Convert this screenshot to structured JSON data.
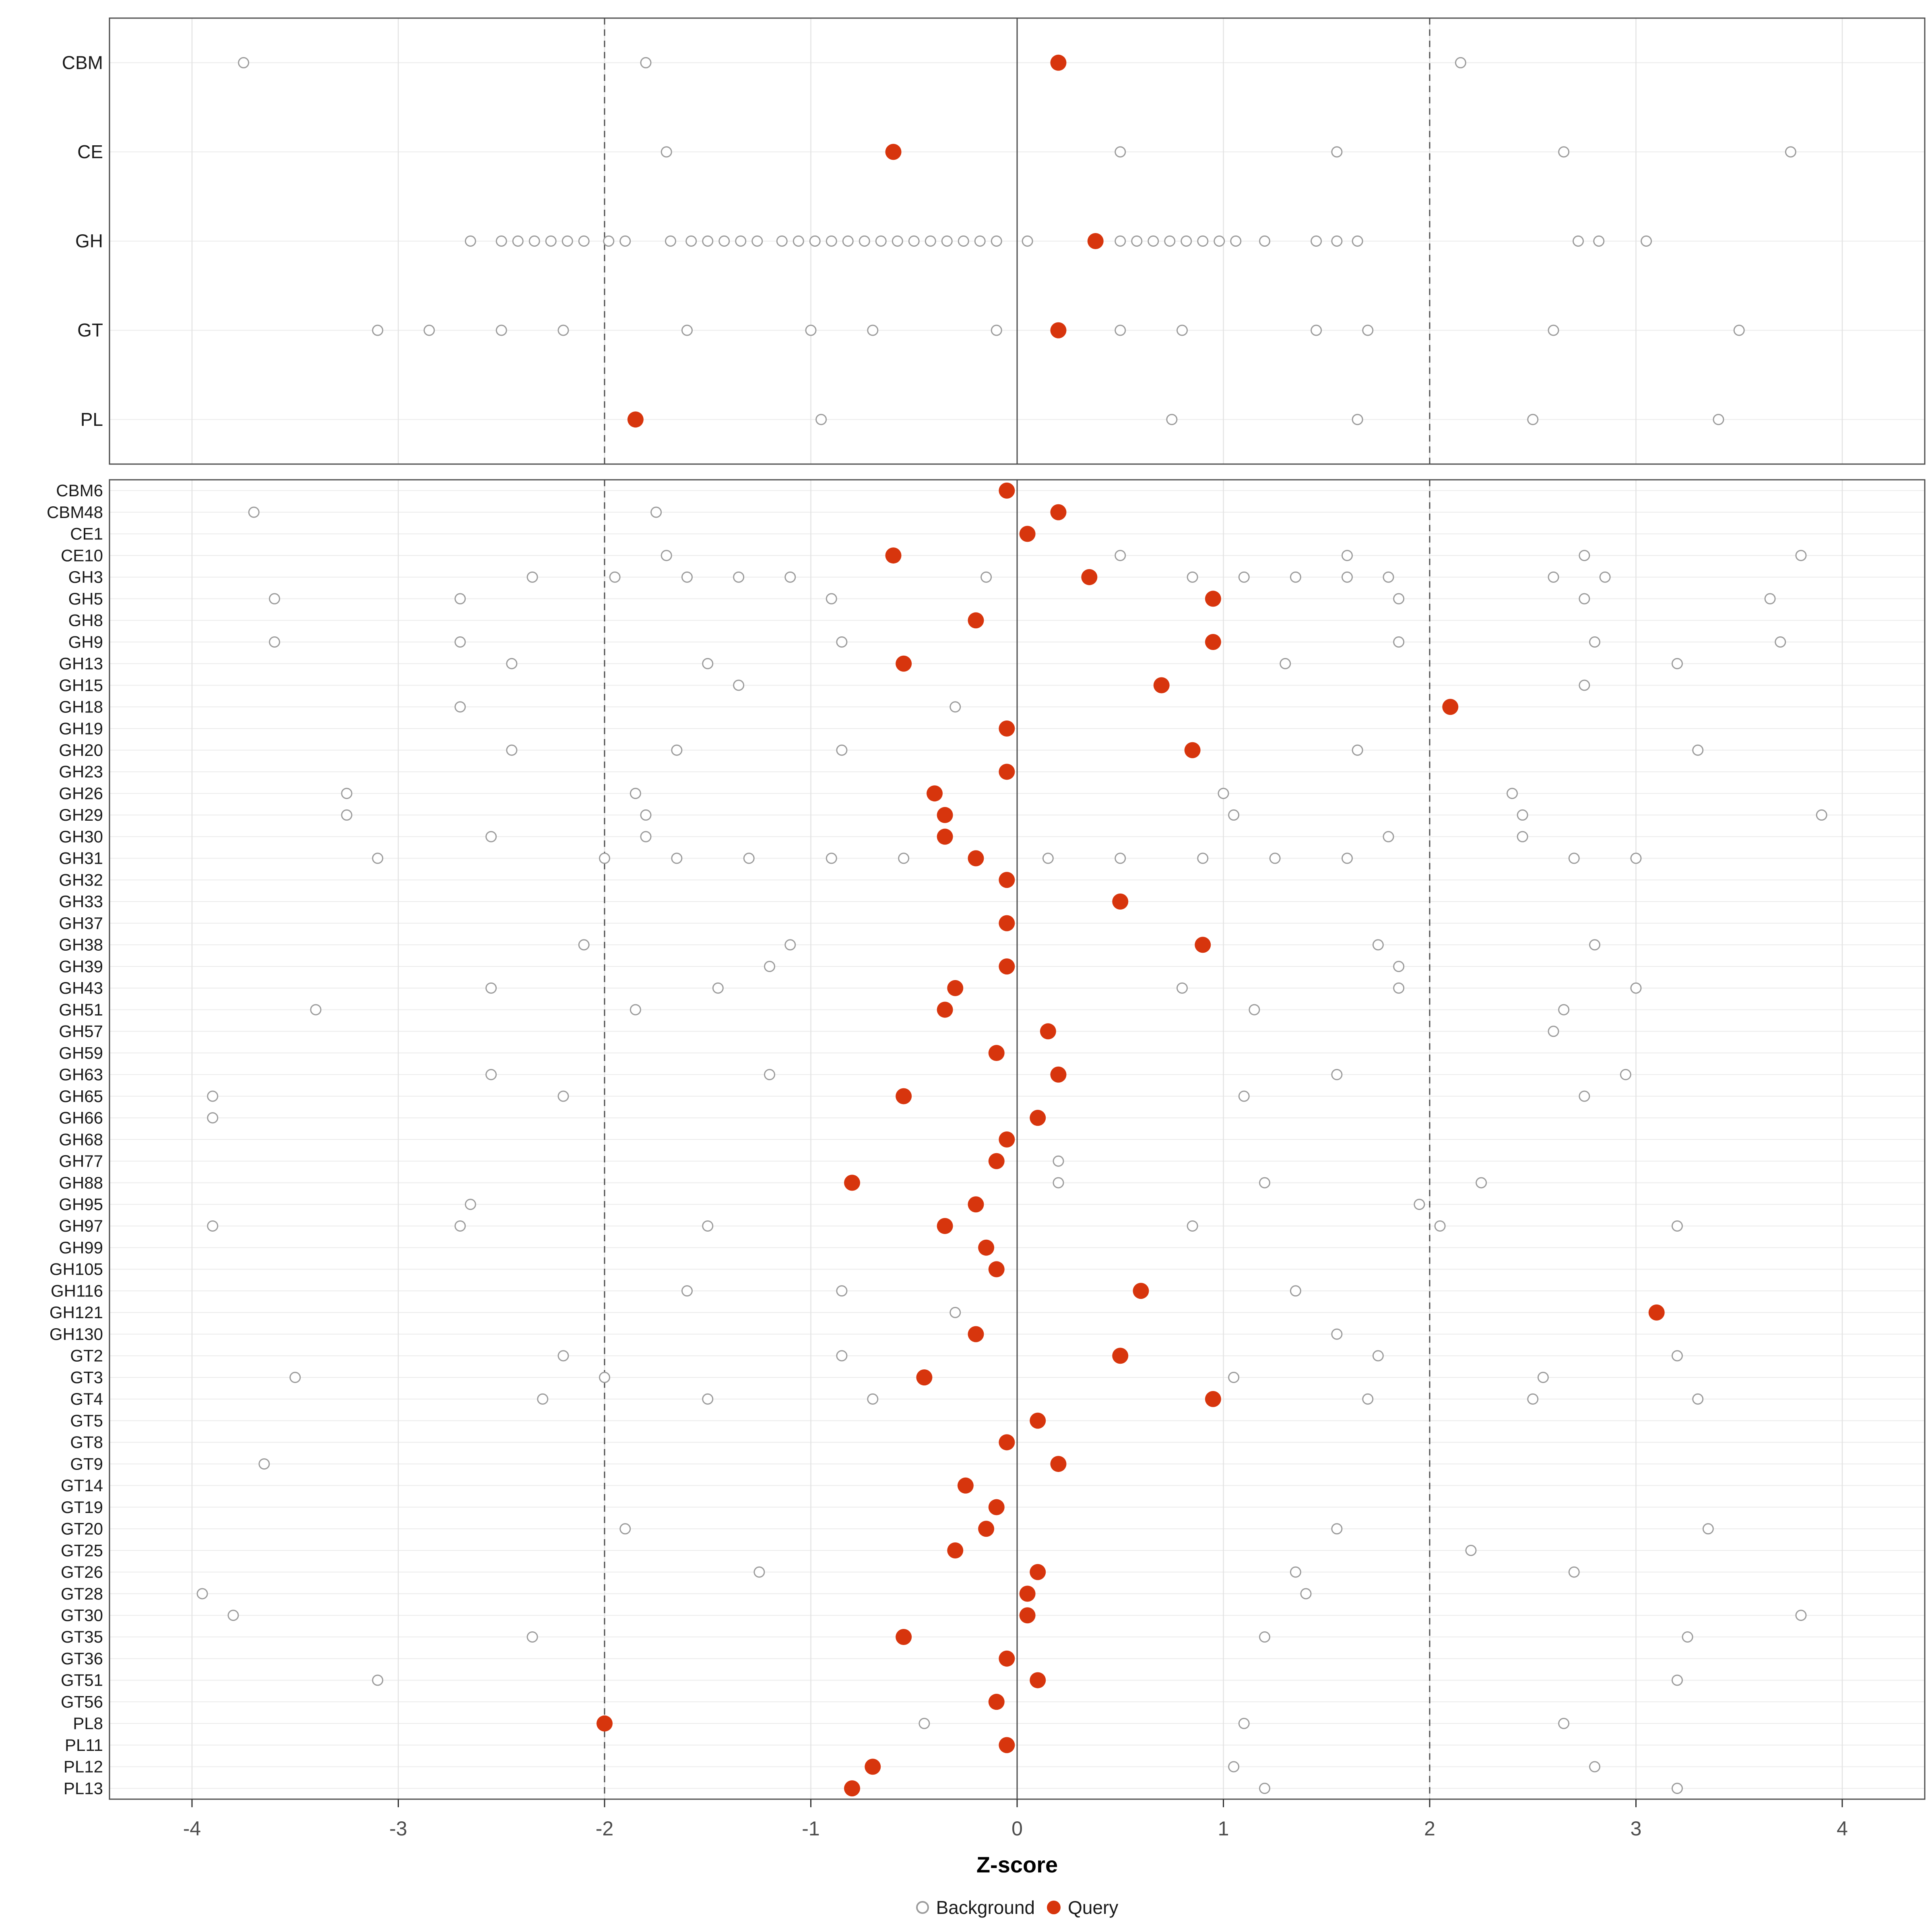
{
  "figure": {
    "xlabel": "Z-score",
    "legend_background": "Background",
    "legend_query": "Query"
  },
  "style": {
    "query_color": "#D7350D",
    "background_stroke": "#9B9B9B",
    "grid_color": "#E3E3E3",
    "row_grid_color": "#EBEBEB",
    "border_color": "#4D4D4D",
    "ref_line_color": "#4D4D4D",
    "label_color": "#1A1A1A",
    "tick_text_color": "#4D4D4D"
  },
  "chart_data": {
    "type": "scatter",
    "xlabel": "Z-score",
    "xlim": [
      -4.4,
      4.4
    ],
    "x_ticks": [
      -4,
      -3,
      -2,
      -1,
      0,
      1,
      2,
      3,
      4
    ],
    "reference_lines": {
      "solid": [
        0
      ],
      "dashed": [
        -2,
        2
      ]
    },
    "legend": [
      "Background",
      "Query"
    ],
    "panels": [
      {
        "name": "summary",
        "rows": [
          {
            "label": "CBM",
            "query": [
              0.2
            ],
            "background": [
              -3.75,
              -1.8,
              2.15
            ]
          },
          {
            "label": "CE",
            "query": [
              -0.6
            ],
            "background": [
              -1.7,
              0.5,
              1.55,
              2.65,
              3.75
            ]
          },
          {
            "label": "GH",
            "query": [
              0.38
            ],
            "background": [
              -2.65,
              -2.5,
              -2.42,
              -2.34,
              -2.26,
              -2.18,
              -2.1,
              -1.98,
              -1.9,
              -1.68,
              -1.58,
              -1.5,
              -1.42,
              -1.34,
              -1.26,
              -1.14,
              -1.06,
              -0.98,
              -0.9,
              -0.82,
              -0.74,
              -0.66,
              -0.58,
              -0.5,
              -0.42,
              -0.34,
              -0.26,
              -0.18,
              -0.1,
              0.05,
              0.5,
              0.58,
              0.66,
              0.74,
              0.82,
              0.9,
              0.98,
              1.06,
              1.2,
              1.45,
              1.55,
              1.65,
              2.72,
              2.82,
              3.05
            ]
          },
          {
            "label": "GT",
            "query": [
              0.2
            ],
            "background": [
              -3.1,
              -2.85,
              -2.5,
              -2.2,
              -1.6,
              -1.0,
              -0.7,
              -0.1,
              0.5,
              0.8,
              1.45,
              1.7,
              2.6,
              3.5
            ]
          },
          {
            "label": "PL",
            "query": [
              -1.85
            ],
            "background": [
              -0.95,
              0.75,
              1.65,
              2.5,
              3.4
            ]
          }
        ]
      },
      {
        "name": "families",
        "rows": [
          {
            "label": "CBM6",
            "query": [
              -0.05
            ],
            "background": []
          },
          {
            "label": "CBM48",
            "query": [
              0.2
            ],
            "background": [
              -3.7,
              -1.75
            ]
          },
          {
            "label": "CE1",
            "query": [
              0.05
            ],
            "background": []
          },
          {
            "label": "CE10",
            "query": [
              -0.6
            ],
            "background": [
              -1.7,
              0.5,
              1.6,
              2.75,
              3.8
            ]
          },
          {
            "label": "GH3",
            "query": [
              0.35
            ],
            "background": [
              -2.35,
              -1.95,
              -1.6,
              -1.35,
              -1.1,
              -0.15,
              0.85,
              1.1,
              1.35,
              1.6,
              1.8,
              2.6,
              2.85
            ]
          },
          {
            "label": "GH5",
            "query": [
              0.95
            ],
            "background": [
              -3.6,
              -2.7,
              -0.9,
              1.85,
              2.75,
              3.65
            ]
          },
          {
            "label": "GH8",
            "query": [
              -0.2
            ],
            "background": []
          },
          {
            "label": "GH9",
            "query": [
              0.95
            ],
            "background": [
              -3.6,
              -2.7,
              -0.85,
              1.85,
              2.8,
              3.7
            ]
          },
          {
            "label": "GH13",
            "query": [
              -0.55
            ],
            "background": [
              -2.45,
              -1.5,
              1.3,
              3.2
            ]
          },
          {
            "label": "GH15",
            "query": [
              0.7
            ],
            "background": [
              -1.35,
              2.75
            ]
          },
          {
            "label": "GH18",
            "query": [
              2.1
            ],
            "background": [
              -2.7,
              -0.3
            ]
          },
          {
            "label": "GH19",
            "query": [
              -0.05
            ],
            "background": []
          },
          {
            "label": "GH20",
            "query": [
              0.85
            ],
            "background": [
              -2.45,
              -1.65,
              -0.85,
              1.65,
              3.3
            ]
          },
          {
            "label": "GH23",
            "query": [
              -0.05
            ],
            "background": []
          },
          {
            "label": "GH26",
            "query": [
              -0.4
            ],
            "background": [
              -3.25,
              -1.85,
              1.0,
              2.4
            ]
          },
          {
            "label": "GH29",
            "query": [
              -0.35
            ],
            "background": [
              -3.25,
              -1.8,
              1.05,
              2.45,
              3.9
            ]
          },
          {
            "label": "GH30",
            "query": [
              -0.35
            ],
            "background": [
              -2.55,
              -1.8,
              1.8,
              2.45
            ]
          },
          {
            "label": "GH31",
            "query": [
              -0.2
            ],
            "background": [
              -3.1,
              -2.0,
              -1.65,
              -1.3,
              -0.9,
              -0.55,
              0.15,
              0.5,
              0.9,
              1.25,
              1.6,
              2.7,
              3.0
            ]
          },
          {
            "label": "GH32",
            "query": [
              -0.05
            ],
            "background": []
          },
          {
            "label": "GH33",
            "query": [
              0.5
            ],
            "background": []
          },
          {
            "label": "GH37",
            "query": [
              -0.05
            ],
            "background": []
          },
          {
            "label": "GH38",
            "query": [
              0.9
            ],
            "background": [
              -2.1,
              -1.1,
              1.75,
              2.8
            ]
          },
          {
            "label": "GH39",
            "query": [
              -0.05
            ],
            "background": [
              -1.2,
              1.85
            ]
          },
          {
            "label": "GH43",
            "query": [
              -0.3
            ],
            "background": [
              -2.55,
              -1.45,
              0.8,
              1.85,
              3.0
            ]
          },
          {
            "label": "GH51",
            "query": [
              -0.35
            ],
            "background": [
              -3.4,
              -1.85,
              1.15,
              2.65
            ]
          },
          {
            "label": "GH57",
            "query": [
              0.15
            ],
            "background": [
              2.6
            ]
          },
          {
            "label": "GH59",
            "query": [
              -0.1
            ],
            "background": []
          },
          {
            "label": "GH63",
            "query": [
              0.2
            ],
            "background": [
              -2.55,
              -1.2,
              1.55,
              2.95
            ]
          },
          {
            "label": "GH65",
            "query": [
              -0.55
            ],
            "background": [
              -3.9,
              -2.2,
              1.1,
              2.75
            ]
          },
          {
            "label": "GH66",
            "query": [
              0.1
            ],
            "background": [
              -3.9
            ]
          },
          {
            "label": "GH68",
            "query": [
              -0.05
            ],
            "background": []
          },
          {
            "label": "GH77",
            "query": [
              -0.1
            ],
            "background": [
              0.2
            ]
          },
          {
            "label": "GH88",
            "query": [
              -0.8
            ],
            "background": [
              0.2,
              1.2,
              2.25
            ]
          },
          {
            "label": "GH95",
            "query": [
              -0.2
            ],
            "background": [
              -2.65,
              1.95
            ]
          },
          {
            "label": "GH97",
            "query": [
              -0.35
            ],
            "background": [
              -3.9,
              -2.7,
              -1.5,
              0.85,
              2.05,
              3.2
            ]
          },
          {
            "label": "GH99",
            "query": [
              -0.15
            ],
            "background": []
          },
          {
            "label": "GH105",
            "query": [
              -0.1
            ],
            "background": []
          },
          {
            "label": "GH116",
            "query": [
              0.6
            ],
            "background": [
              -1.6,
              -0.85,
              1.35
            ]
          },
          {
            "label": "GH121",
            "query": [
              3.1
            ],
            "background": [
              -0.3
            ]
          },
          {
            "label": "GH130",
            "query": [
              -0.2
            ],
            "background": [
              1.55
            ]
          },
          {
            "label": "GT2",
            "query": [
              0.5
            ],
            "background": [
              -2.2,
              -0.85,
              1.75,
              3.2
            ]
          },
          {
            "label": "GT3",
            "query": [
              -0.45
            ],
            "background": [
              -3.5,
              -2.0,
              1.05,
              2.55
            ]
          },
          {
            "label": "GT4",
            "query": [
              0.95
            ],
            "background": [
              -2.3,
              -1.5,
              -0.7,
              1.7,
              2.5,
              3.3
            ]
          },
          {
            "label": "GT5",
            "query": [
              0.1
            ],
            "background": []
          },
          {
            "label": "GT8",
            "query": [
              -0.05
            ],
            "background": []
          },
          {
            "label": "GT9",
            "query": [
              0.2
            ],
            "background": [
              -3.65
            ]
          },
          {
            "label": "GT14",
            "query": [
              -0.25
            ],
            "background": []
          },
          {
            "label": "GT19",
            "query": [
              -0.1
            ],
            "background": []
          },
          {
            "label": "GT20",
            "query": [
              -0.15
            ],
            "background": [
              -1.9,
              1.55,
              3.35
            ]
          },
          {
            "label": "GT25",
            "query": [
              -0.3
            ],
            "background": [
              2.2
            ]
          },
          {
            "label": "GT26",
            "query": [
              0.1
            ],
            "background": [
              -1.25,
              1.35,
              2.7
            ]
          },
          {
            "label": "GT28",
            "query": [
              0.05
            ],
            "background": [
              -3.95,
              1.4
            ]
          },
          {
            "label": "GT30",
            "query": [
              0.05
            ],
            "background": [
              -3.8,
              3.8
            ]
          },
          {
            "label": "GT35",
            "query": [
              -0.55
            ],
            "background": [
              -2.35,
              1.2,
              3.25
            ]
          },
          {
            "label": "GT36",
            "query": [
              -0.05
            ],
            "background": []
          },
          {
            "label": "GT51",
            "query": [
              0.1
            ],
            "background": [
              -3.1,
              3.2
            ]
          },
          {
            "label": "GT56",
            "query": [
              -0.1
            ],
            "background": []
          },
          {
            "label": "PL8",
            "query": [
              -2.0
            ],
            "background": [
              -0.45,
              1.1,
              2.65
            ]
          },
          {
            "label": "PL11",
            "query": [
              -0.05
            ],
            "background": []
          },
          {
            "label": "PL12",
            "query": [
              -0.7
            ],
            "background": [
              1.05,
              2.8
            ]
          },
          {
            "label": "PL13",
            "query": [
              -0.8
            ],
            "background": [
              1.2,
              3.2
            ]
          }
        ]
      }
    ]
  }
}
